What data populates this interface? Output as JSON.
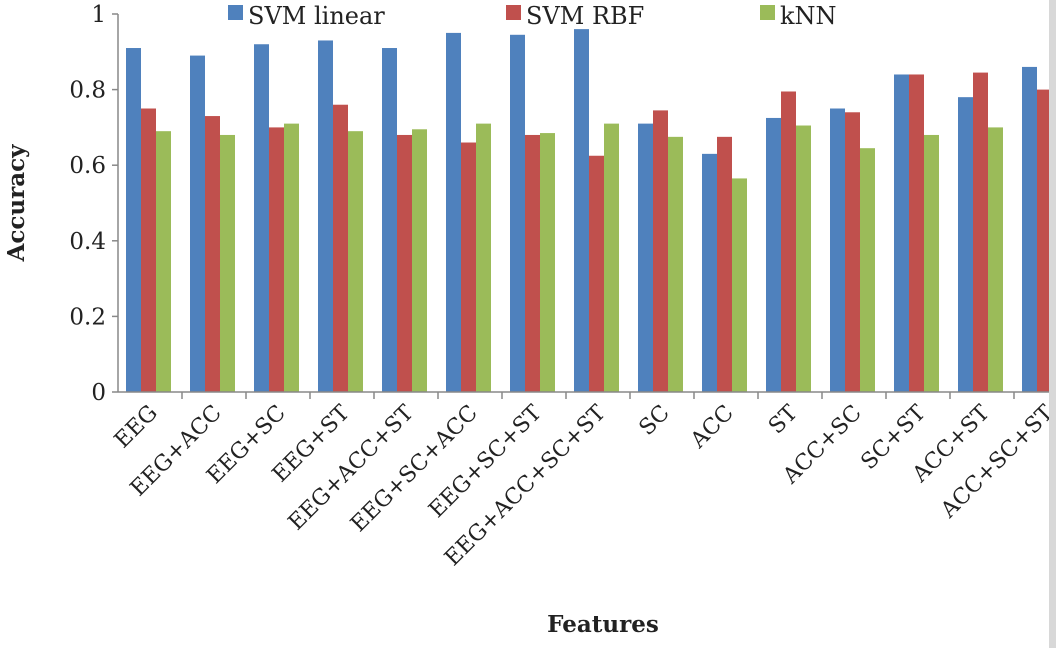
{
  "chart_data": {
    "type": "bar",
    "title": "",
    "xlabel": "Features",
    "ylabel": "Accuracy",
    "ylim": [
      0,
      1
    ],
    "yticks": [
      "0",
      "0.2",
      "0.4",
      "0.6",
      "0.8",
      "1"
    ],
    "grid": false,
    "legend_position": "top",
    "categories": [
      "EEG",
      "EEG+ACC",
      "EEG+SC",
      "EEG+ST",
      "EEG+ACC+ST",
      "EEG+SC+ACC",
      "EEG+SC+ST",
      "EEG+ACC+SC+ST",
      "SC",
      "ACC",
      "ST",
      "ACC+SC",
      "SC+ST",
      "ACC+ST",
      "ACC+SC+ST"
    ],
    "series": [
      {
        "name": "SVM linear",
        "color": "#4f81bd",
        "values": [
          0.91,
          0.89,
          0.92,
          0.93,
          0.91,
          0.95,
          0.945,
          0.96,
          0.71,
          0.63,
          0.725,
          0.75,
          0.84,
          0.78,
          0.86
        ]
      },
      {
        "name": "SVM RBF",
        "color": "#c0504d",
        "values": [
          0.75,
          0.73,
          0.7,
          0.76,
          0.68,
          0.66,
          0.68,
          0.625,
          0.745,
          0.675,
          0.795,
          0.74,
          0.84,
          0.845,
          0.8
        ]
      },
      {
        "name": "kNN",
        "color": "#9bbb59",
        "values": [
          0.69,
          0.68,
          0.71,
          0.69,
          0.695,
          0.71,
          0.685,
          0.71,
          0.675,
          0.565,
          0.705,
          0.645,
          0.68,
          0.7,
          null
        ]
      }
    ]
  }
}
